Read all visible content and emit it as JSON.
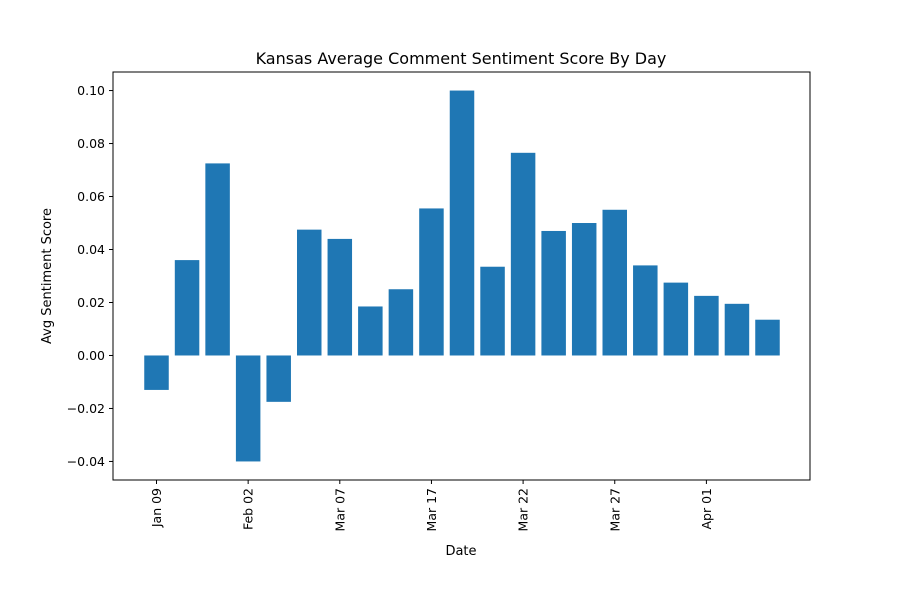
{
  "chart_data": {
    "type": "bar",
    "title": "Kansas Average Comment Sentiment Score By Day",
    "xlabel": "Date",
    "ylabel": "Avg Sentiment Score",
    "ylim": [
      -0.047,
      0.107
    ],
    "yticks": [
      -0.04,
      -0.02,
      0.0,
      0.02,
      0.04,
      0.06,
      0.08,
      0.1
    ],
    "ytick_labels": [
      "−0.04",
      "−0.02",
      "0.00",
      "0.02",
      "0.04",
      "0.06",
      "0.08",
      "0.10"
    ],
    "xtick_labels": [
      "Jan 09",
      "Feb 02",
      "Mar 07",
      "Mar 17",
      "Mar 22",
      "Mar 27",
      "Apr 01"
    ],
    "xtick_bar_index": [
      0,
      3,
      6,
      9,
      12,
      15,
      18
    ],
    "values": [
      -0.013,
      0.036,
      0.0725,
      -0.04,
      -0.0175,
      0.0475,
      0.044,
      0.0185,
      0.025,
      0.0555,
      0.1,
      0.0335,
      0.0765,
      0.047,
      0.05,
      0.055,
      0.034,
      0.0275,
      0.0225,
      0.0195,
      0.0135
    ],
    "color": "#1f77b4",
    "grid": false,
    "legend": "none"
  }
}
